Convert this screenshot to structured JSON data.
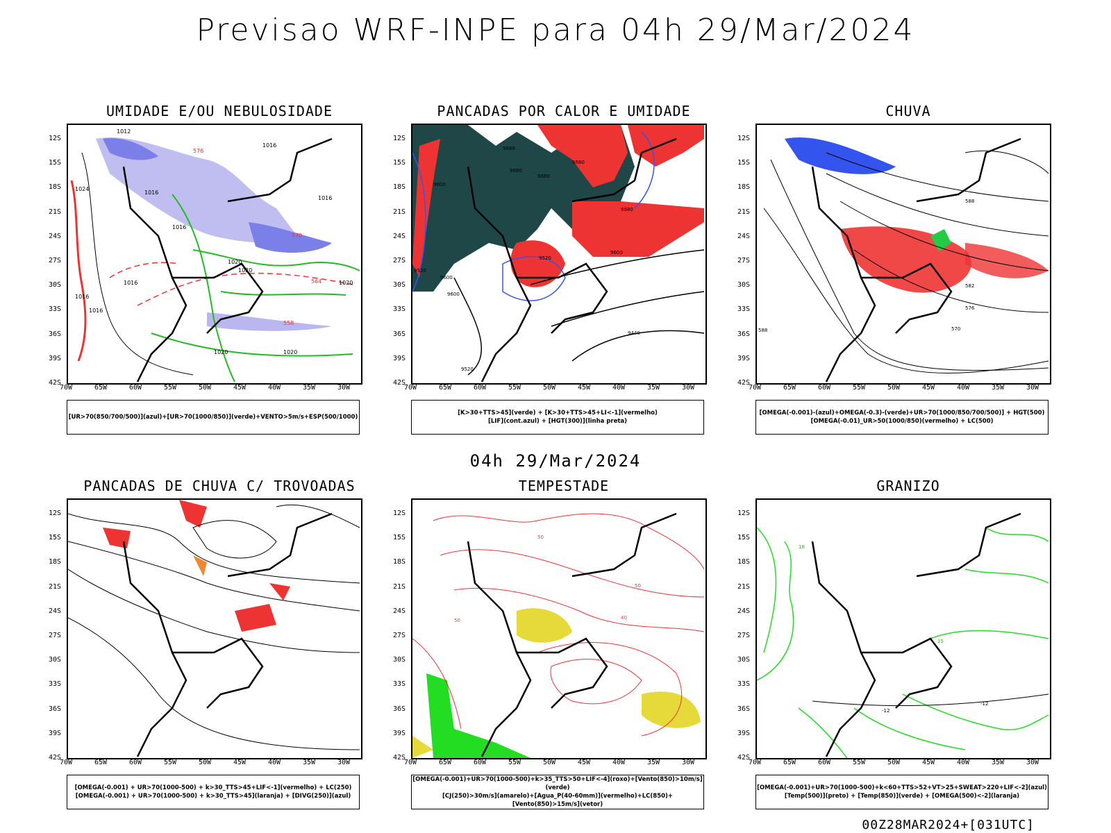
{
  "header": {
    "title": "Previsao WRF-INPE  para 04h 29/Mar/2024"
  },
  "mid_title": "04h 29/Mar/2024",
  "footer": "00Z28MAR2024+[031UTC]",
  "lat_labels": [
    "12S",
    "15S",
    "18S",
    "21S",
    "24S",
    "27S",
    "30S",
    "33S",
    "36S",
    "39S",
    "42S"
  ],
  "lon_labels": [
    "70W",
    "65W",
    "60W",
    "55W",
    "50W",
    "45W",
    "40W",
    "35W",
    "30W"
  ],
  "panels": [
    {
      "title": "UMIDADE E/OU NEBULOSIDADE",
      "legend": [
        "[UR>70(850/700/500)](azul)+[UR>70(1000/850)](verde)+VENTO>5m/s+ESP(500/1000)"
      ],
      "labels": [
        "1012",
        "1016",
        "1016",
        "1020",
        "1016",
        "1024",
        "1020",
        "1016",
        "1016",
        "1020",
        "1016",
        "1020",
        "1020",
        "1016",
        "570",
        "576",
        "564",
        "558"
      ]
    },
    {
      "title": "PANCADAS POR CALOR E UMIDADE",
      "legend": [
        "[K>30+TTS>45](verde) + [K>30+TTS>45+LI<-1](vermelho)",
        "[LIF](cont.azul) + [HGT(300)](linha preta)"
      ],
      "labels": [
        "9680",
        "9680",
        "9680",
        "9680",
        "9600",
        "9680",
        "9600",
        "9520",
        "9520",
        "9600",
        "9600",
        "9440",
        "9520"
      ]
    },
    {
      "title": "CHUVA",
      "legend": [
        "[OMEGA(-0.001)-(azul)+OMEGA(-0.3)-(verde)+UR>70(1000/850/700/500)] + HGT(500)",
        "[OMEGA(-0.01)_UR>50(1000/850)(vermelho) + LC(500)"
      ],
      "labels": [
        "588",
        "582",
        "576",
        "570",
        "588"
      ]
    },
    {
      "title": "PANCADAS DE CHUVA C/ TROVOADAS",
      "legend": [
        "[OMEGA(-0.001) + UR>70(1000-500) + k>30_TTS>45+LIF<-1](vermelho) + LC(250)",
        "[OMEGA(-0.001) + UR>70(1000-500) + k>30_TTS>45](laranja) + [DIVG(250)](azul)"
      ],
      "labels": []
    },
    {
      "title": "TEMPESTADE",
      "legend": [
        "[OMEGA(-0.001)+UR>70(1000-500)+k>35_TTS>50+LIF<-4](roxo)+[Vento(850)>10m/s](verde)",
        "[CJ(250)>30m/s](amarelo)+[Agua_P(40-60mm)](vermelho)+LC(850)+[Vento(850)>15m/s](vetor)"
      ],
      "labels": [
        "50",
        "50",
        "40",
        "50"
      ]
    },
    {
      "title": "GRANIZO",
      "legend": [
        "[OMEGA(-0.001)+UR>70(1000-500)+k<60+TTS>52+VT>25+SWEAT>220+LIF<-2](azul)",
        "[Temp(500)](preto) + [Temp(850)](verde) + [OMEGA(500)<-2](laranja)"
      ],
      "labels": [
        "-12",
        "-12",
        "18",
        "15"
      ]
    }
  ],
  "colors": {
    "blue": "#7b7fe8",
    "lavender": "#b9b6f0",
    "green": "#22bb22",
    "red": "#ee3333",
    "darkteal": "#1f4747",
    "yellow": "#e6d93a",
    "orange": "#ee8833",
    "brightgreen": "#22dd22"
  }
}
